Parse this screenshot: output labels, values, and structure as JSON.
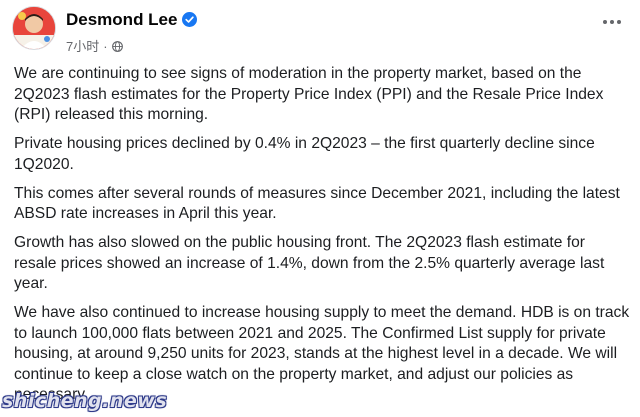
{
  "post": {
    "author": "Desmond Lee",
    "time": "7小时",
    "separator": "·",
    "paragraphs": [
      "We are continuing to see signs of moderation in the property market, based on the 2Q2023 flash estimates for the Property Price Index (PPI) and the Resale Price Index (RPI) released this morning.",
      "Private housing prices declined by 0.4% in 2Q2023 – the first quarterly decline since 1Q2020.",
      "This comes after several rounds of measures since December 2021, including the latest ABSD rate increases in April this year.",
      "Growth has also slowed on the public housing front. The 2Q2023 flash estimate for resale prices showed an increase of 1.4%, down from the 2.5% quarterly average last year.",
      "We have also continued to increase housing supply to meet the demand. HDB is on track to launch 100,000 flats between 2021 and 2025. The Confirmed List supply for private housing, at around 9,250 units for 2023, stands at the highest level in a decade. We will continue to keep a close watch on the property market, and adjust our policies as necessary."
    ]
  },
  "watermark": "shicheng.news",
  "icons": {
    "verified": "verified-badge-icon",
    "audience": "globe-icon",
    "more": "more-options-icon"
  },
  "colors": {
    "verified": "#1877f2",
    "meta": "#65676b",
    "text": "#1c1e21"
  }
}
